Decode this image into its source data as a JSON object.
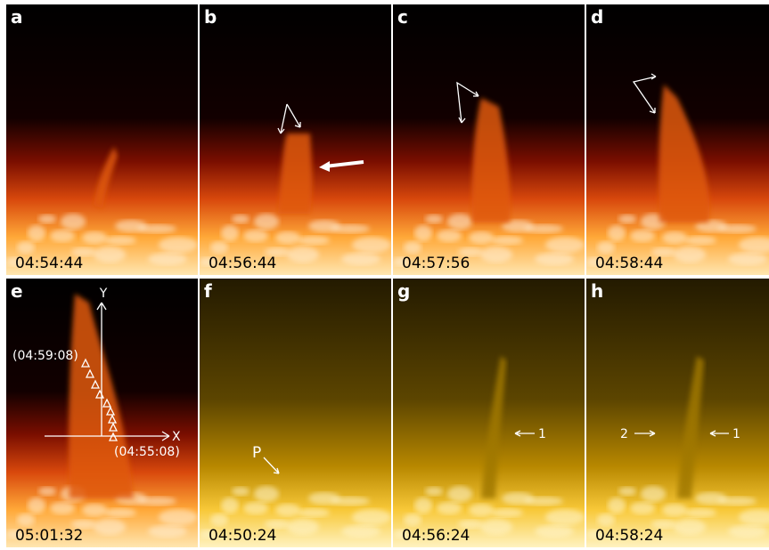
{
  "panels": [
    {
      "letter": "a",
      "time": "04:54:44"
    },
    {
      "letter": "b",
      "time": "04:56:44"
    },
    {
      "letter": "c",
      "time": "04:57:56"
    },
    {
      "letter": "d",
      "time": "04:58:44"
    },
    {
      "letter": "e",
      "time": "05:01:32",
      "annotations": [
        "Y",
        "X",
        "(04:59:08)",
        "(04:55:08)"
      ]
    },
    {
      "letter": "f",
      "time": "04:50:24",
      "annotations": [
        "P"
      ]
    },
    {
      "letter": "g",
      "time": "04:56:24",
      "annotations": [
        "1"
      ]
    },
    {
      "letter": "h",
      "time": "04:58:24",
      "annotations": [
        "2",
        "1"
      ]
    }
  ]
}
